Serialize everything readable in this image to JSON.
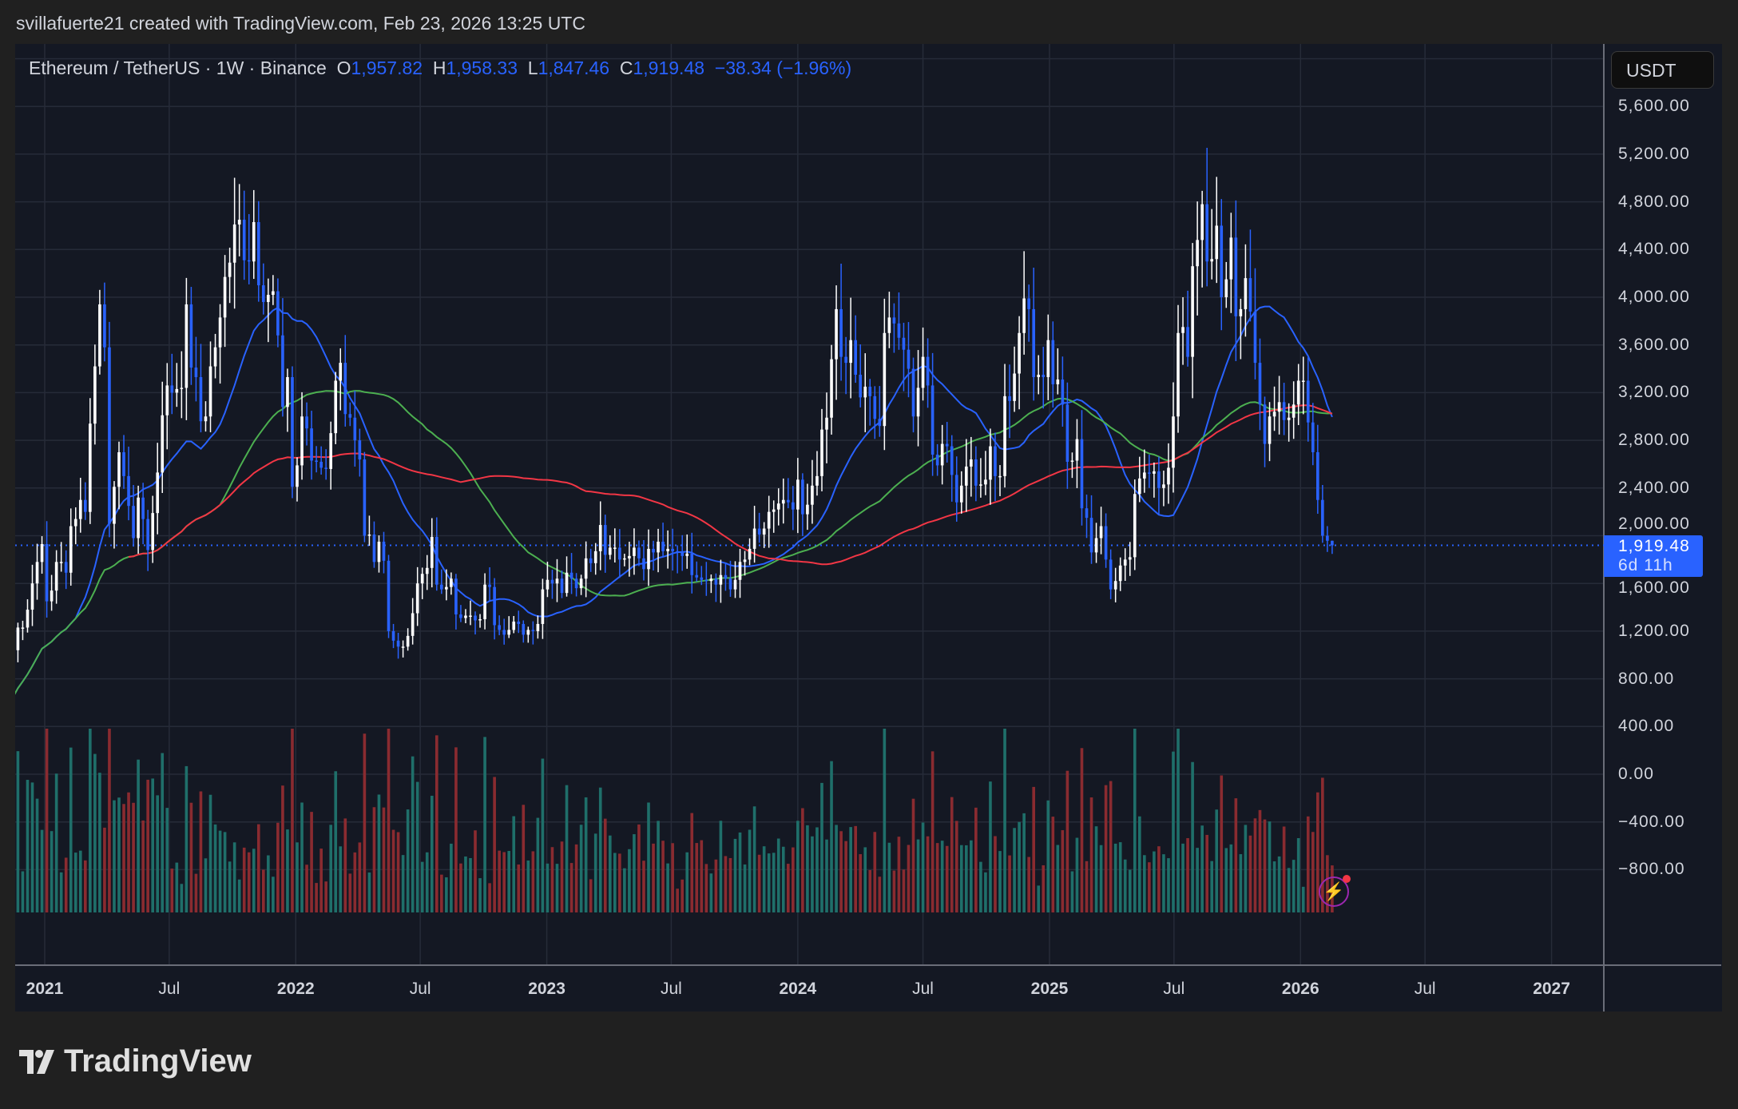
{
  "header": {
    "credit": "svillafuerte21 created with TradingView.com, Feb 23, 2026 13:25 UTC"
  },
  "legend": {
    "symbol": "Ethereum / TetherUS · 1W · Binance",
    "open_label": "O",
    "open": "1,957.82",
    "high_label": "H",
    "high": "1,958.33",
    "low_label": "L",
    "low": "1,847.46",
    "close_label": "C",
    "close": "1,919.48",
    "change": "−38.34 (−1.96%)"
  },
  "currency_button": "USDT",
  "last_price": {
    "value": "1,919.48",
    "countdown": "6d 11h"
  },
  "logo_text": "TradingView",
  "colors": {
    "background": "#141823",
    "up": "#ffffff",
    "down": "#2962ff",
    "ma_fast": "#2962ff",
    "ma_mid": "#4caf50",
    "ma_slow": "#f23645",
    "vol_up": "#1f6f6a",
    "vol_down": "#8a2b30"
  },
  "chart_data": {
    "type": "candlestick",
    "interval": "1W",
    "last_candle_date": "2026-02-16",
    "y_ticks": [
      "5,600.00",
      "5,200.00",
      "4,800.00",
      "4,400.00",
      "4,000.00",
      "3,600.00",
      "3,200.00",
      "2,800.00",
      "2,400.00",
      "2,000.00",
      "1,600.00",
      "1,200.00",
      "800.00",
      "400.00",
      "0.00",
      "−400.00",
      "−800.00"
    ],
    "y_tick_values": [
      5600,
      5200,
      4800,
      4400,
      4000,
      3600,
      3200,
      2800,
      2400,
      2000,
      1600,
      1200,
      800,
      400,
      0,
      -400,
      -800
    ],
    "x_ticks": [
      {
        "label": "2021",
        "date": "2021-01-01",
        "year": true
      },
      {
        "label": "Jul",
        "date": "2021-07-01"
      },
      {
        "label": "2022",
        "date": "2022-01-01",
        "year": true
      },
      {
        "label": "Jul",
        "date": "2022-07-01"
      },
      {
        "label": "2023",
        "date": "2023-01-01",
        "year": true
      },
      {
        "label": "Jul",
        "date": "2023-07-01"
      },
      {
        "label": "2024",
        "date": "2024-01-01",
        "year": true
      },
      {
        "label": "Jul",
        "date": "2024-07-01"
      },
      {
        "label": "2025",
        "date": "2025-01-01",
        "year": true
      },
      {
        "label": "Jul",
        "date": "2025-07-01"
      },
      {
        "label": "2026",
        "date": "2026-01-01",
        "year": true
      },
      {
        "label": "Jul",
        "date": "2026-07-01"
      },
      {
        "label": "2027",
        "date": "2027-01-01",
        "year": true
      }
    ],
    "last_open": 1957.82,
    "last_high": 1958.33,
    "last_low": 1847.46,
    "last_close": 1919.48,
    "weekly_closes": [
      470,
      510,
      560,
      590,
      640,
      730,
      1040,
      1230,
      1230,
      1380,
      1600,
      1780,
      1930,
      1450,
      1540,
      1780,
      1780,
      1690,
      2080,
      2140,
      2300,
      2200,
      2940,
      3420,
      3940,
      3580,
      2100,
      2410,
      2700,
      2500,
      2250,
      1980,
      2320,
      2140,
      1880,
      2190,
      2530,
      3010,
      3260,
      3200,
      3230,
      3240,
      3940,
      3410,
      3330,
      2960,
      3000,
      3420,
      3580,
      3830,
      4170,
      4290,
      4610,
      4650,
      4310,
      4300,
      4630,
      4100,
      3960,
      4020,
      4050,
      3680,
      3080,
      3330,
      2410,
      2590,
      3000,
      2900,
      2630,
      2620,
      2570,
      2560,
      2860,
      3300,
      3450,
      3020,
      2990,
      2800,
      2640,
      2000,
      2010,
      1780,
      1950,
      1790,
      1200,
      1120,
      1070,
      1070,
      1160,
      1350,
      1600,
      1680,
      1730,
      1990,
      1590,
      1550,
      1570,
      1640,
      1340,
      1310,
      1330,
      1330,
      1290,
      1300,
      1590,
      1570,
      1250,
      1210,
      1170,
      1210,
      1280,
      1260,
      1170,
      1210,
      1200,
      1260,
      1550,
      1630,
      1600,
      1640,
      1520,
      1690,
      1640,
      1560,
      1640,
      1810,
      1770,
      1870,
      2090,
      1840,
      1900,
      1900,
      1800,
      1810,
      1830,
      1900,
      1810,
      1720,
      1890,
      1860,
      1950,
      1870,
      1890,
      1870,
      1860,
      1830,
      1850,
      1670,
      1650,
      1630,
      1620,
      1640,
      1590,
      1670,
      1640,
      1550,
      1630,
      1780,
      1800,
      1890,
      2060,
      2010,
      2060,
      2200,
      2220,
      2270,
      2300,
      2280,
      2220,
      2470,
      2180,
      2260,
      2420,
      2500,
      2890,
      2990,
      3480,
      3900,
      3500,
      3450,
      3640,
      3350,
      3160,
      3250,
      3170,
      2980,
      2920,
      3700,
      3830,
      3780,
      3660,
      3560,
      3400,
      3000,
      3240,
      3500,
      3260,
      2680,
      2590,
      2770,
      2750,
      2510,
      2280,
      2420,
      2580,
      2640,
      2420,
      2430,
      2470,
      2750,
      2500,
      2500,
      3170,
      3130,
      3360,
      3700,
      3990,
      3900,
      3330,
      3350,
      3330,
      3640,
      3270,
      3310,
      3100,
      2620,
      2630,
      2810,
      2230,
      2150,
      1860,
      1980,
      2080,
      1800,
      1550,
      1620,
      1750,
      1800,
      1820,
      2350,
      2480,
      2530,
      2520,
      2540,
      2400,
      2430,
      2570,
      3000,
      3700,
      3750,
      3500,
      4260,
      4480,
      4780,
      4300,
      4320,
      4600,
      4000,
      4150,
      4500,
      3840,
      3900,
      4160,
      3880,
      3450,
      3100,
      2770,
      3000,
      3040,
      3120,
      2970,
      2990,
      3100,
      3300,
      3300,
      2950,
      2700,
      2300,
      2000,
      1957.82,
      1919.48
    ],
    "moving_averages": [
      {
        "color": "#2962ff",
        "period": 20
      },
      {
        "color": "#4caf50",
        "period": 50
      },
      {
        "color": "#f23645",
        "period": 100
      }
    ],
    "y_range": [
      -1000,
      6000
    ],
    "x_range": [
      "2020-11-09",
      "2027-03-01"
    ],
    "grid": true,
    "volume": true
  }
}
